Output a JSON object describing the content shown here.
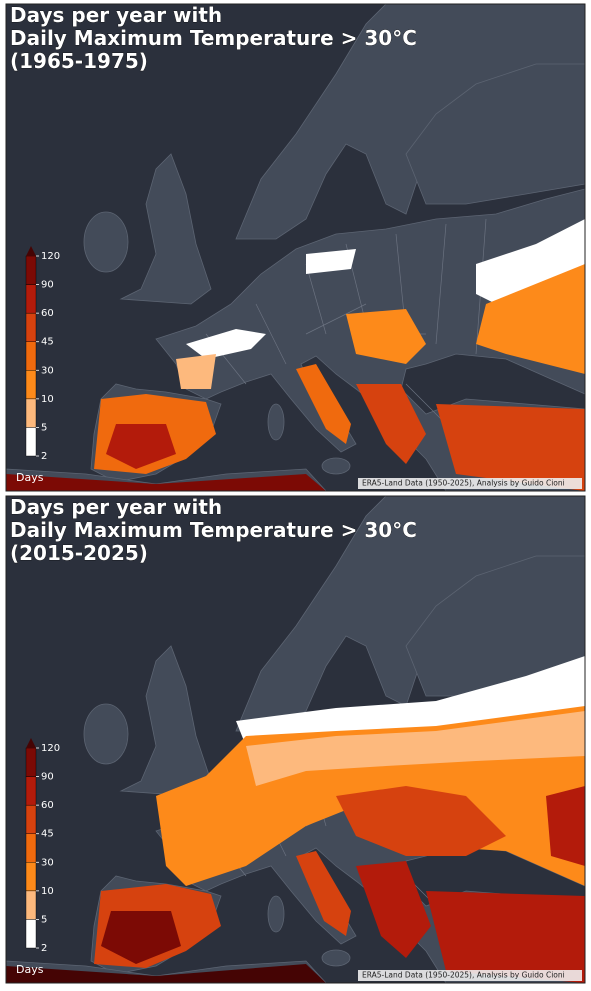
{
  "panels": [
    {
      "title": [
        "Days per year with",
        "Daily Maximum Temperature > 30°C",
        "(1965-1975)"
      ],
      "colorbar": {
        "ticks": [
          2,
          5,
          10,
          30,
          45,
          60,
          90,
          120
        ],
        "colors": [
          "#ffffff",
          "#fdb97d",
          "#fd8a1a",
          "#f06a0e",
          "#d6420f",
          "#b31b0b",
          "#7c0a05"
        ],
        "extend_color": "#450404",
        "label": "Days"
      },
      "credit": "ERA5-Land Data (1950-2025), Analysis by Guido Cioni"
    },
    {
      "title": [
        "Days per year with",
        "Daily Maximum Temperature > 30°C",
        "(2015-2025)"
      ],
      "colorbar": {
        "ticks": [
          2,
          5,
          10,
          30,
          45,
          60,
          90,
          120
        ],
        "colors": [
          "#ffffff",
          "#fdb97d",
          "#fd8a1a",
          "#f06a0e",
          "#d6420f",
          "#b31b0b",
          "#7c0a05"
        ],
        "extend_color": "#450404",
        "label": "Days"
      },
      "credit": "ERA5-Land Data (1950-2025), Analysis by Guido Cioni"
    }
  ]
}
